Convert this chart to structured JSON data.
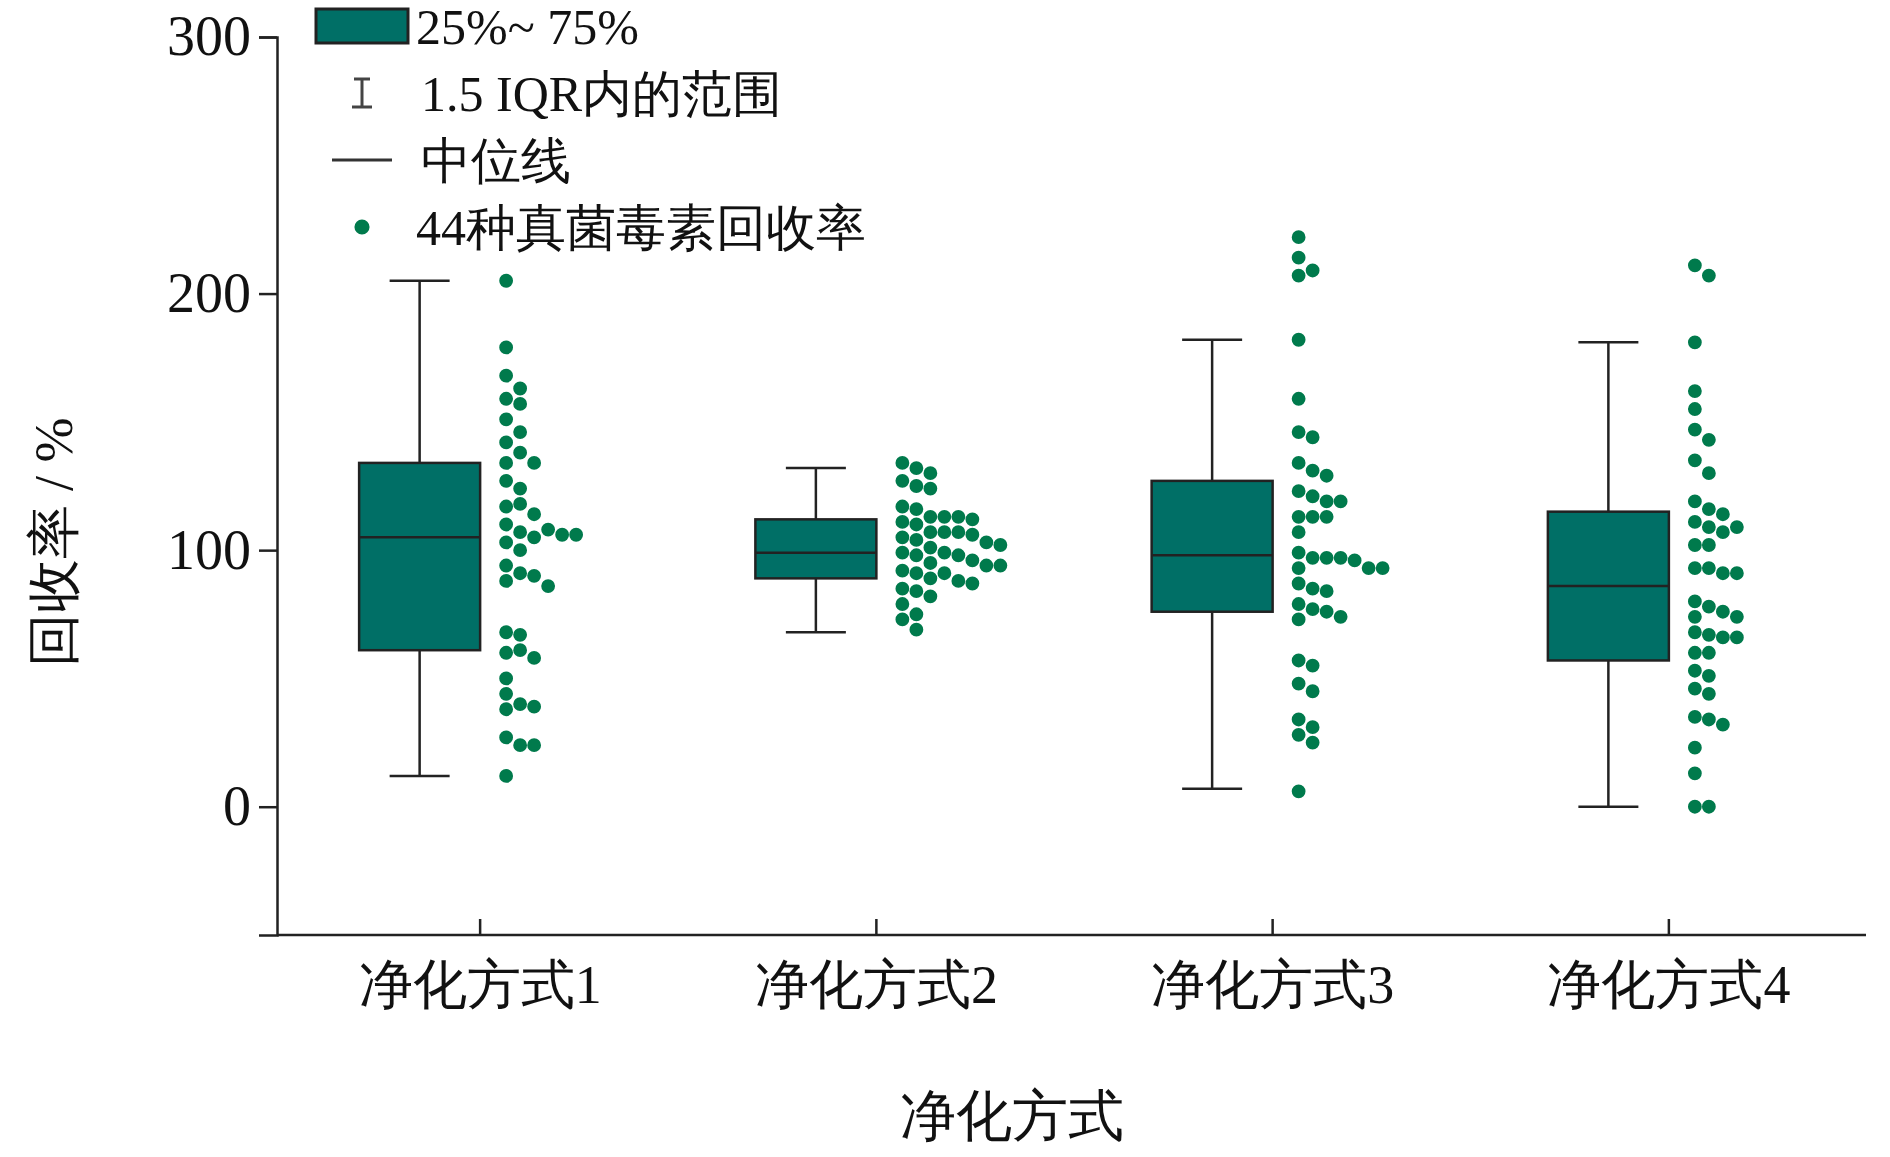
{
  "chart_data": {
    "type": "box",
    "xlabel": "净化方式",
    "ylabel": "回收率 / %",
    "categories": [
      "净化方式1",
      "净化方式2",
      "净化方式3",
      "净化方式4"
    ],
    "ylim": [
      -50,
      300
    ],
    "yticks": [
      0,
      100,
      200,
      300
    ],
    "grid": false,
    "legend": "top left",
    "marker": "circle",
    "annotations": [
      "1.5 IQR内的范围",
      "中位线"
    ],
    "series": [
      {
        "type": "box",
        "name": "25%~ 75%",
        "color": "#006f66",
        "boxes": [
          {
            "low": 12,
            "q1": 61,
            "median": 105,
            "q3": 134,
            "high": 205
          },
          {
            "low": 68,
            "q1": 89,
            "median": 99,
            "q3": 112,
            "high": 132
          },
          {
            "low": 7,
            "q1": 76,
            "median": 98,
            "q3": 127,
            "high": 182
          },
          {
            "low": 0,
            "q1": 57,
            "median": 86,
            "q3": 115,
            "high": 181
          }
        ]
      },
      {
        "type": "scatter",
        "name": "44种真菌毒素回收率",
        "color": "#007a4c",
        "x": [
          "净化方式1",
          "净化方式1",
          "净化方式1",
          "净化方式1",
          "净化方式1",
          "净化方式1",
          "净化方式1",
          "净化方式1",
          "净化方式1",
          "净化方式1",
          "净化方式1",
          "净化方式1",
          "净化方式1",
          "净化方式1",
          "净化方式1",
          "净化方式1",
          "净化方式1",
          "净化方式1",
          "净化方式1",
          "净化方式1",
          "净化方式1",
          "净化方式1",
          "净化方式1",
          "净化方式1",
          "净化方式1",
          "净化方式1",
          "净化方式1",
          "净化方式1",
          "净化方式1",
          "净化方式1",
          "净化方式1",
          "净化方式1",
          "净化方式1",
          "净化方式1",
          "净化方式1",
          "净化方式1",
          "净化方式1",
          "净化方式1",
          "净化方式1",
          "净化方式1",
          "净化方式1",
          "净化方式1",
          "净化方式1",
          "净化方式1",
          "净化方式2",
          "净化方式2",
          "净化方式2",
          "净化方式2",
          "净化方式2",
          "净化方式2",
          "净化方式2",
          "净化方式2",
          "净化方式2",
          "净化方式2",
          "净化方式2",
          "净化方式2",
          "净化方式2",
          "净化方式2",
          "净化方式2",
          "净化方式2",
          "净化方式2",
          "净化方式2",
          "净化方式2",
          "净化方式2",
          "净化方式2",
          "净化方式2",
          "净化方式2",
          "净化方式2",
          "净化方式2",
          "净化方式2",
          "净化方式2",
          "净化方式2",
          "净化方式2",
          "净化方式2",
          "净化方式2",
          "净化方式2",
          "净化方式2",
          "净化方式2",
          "净化方式2",
          "净化方式2",
          "净化方式2",
          "净化方式2",
          "净化方式2",
          "净化方式2",
          "净化方式2",
          "净化方式2",
          "净化方式2",
          "净化方式2",
          "净化方式3",
          "净化方式3",
          "净化方式3",
          "净化方式3",
          "净化方式3",
          "净化方式3",
          "净化方式3",
          "净化方式3",
          "净化方式3",
          "净化方式3",
          "净化方式3",
          "净化方式3",
          "净化方式3",
          "净化方式3",
          "净化方式3",
          "净化方式3",
          "净化方式3",
          "净化方式3",
          "净化方式3",
          "净化方式3",
          "净化方式3",
          "净化方式3",
          "净化方式3",
          "净化方式3",
          "净化方式3",
          "净化方式3",
          "净化方式3",
          "净化方式3",
          "净化方式3",
          "净化方式3",
          "净化方式3",
          "净化方式3",
          "净化方式3",
          "净化方式3",
          "净化方式3",
          "净化方式3",
          "净化方式3",
          "净化方式3",
          "净化方式3",
          "净化方式3",
          "净化方式3",
          "净化方式3",
          "净化方式3",
          "净化方式3",
          "净化方式4",
          "净化方式4",
          "净化方式4",
          "净化方式4",
          "净化方式4",
          "净化方式4",
          "净化方式4",
          "净化方式4",
          "净化方式4",
          "净化方式4",
          "净化方式4",
          "净化方式4",
          "净化方式4",
          "净化方式4",
          "净化方式4",
          "净化方式4",
          "净化方式4",
          "净化方式4",
          "净化方式4",
          "净化方式4",
          "净化方式4",
          "净化方式4",
          "净化方式4",
          "净化方式4",
          "净化方式4",
          "净化方式4",
          "净化方式4",
          "净化方式4",
          "净化方式4",
          "净化方式4",
          "净化方式4",
          "净化方式4",
          "净化方式4",
          "净化方式4",
          "净化方式4",
          "净化方式4",
          "净化方式4",
          "净化方式4",
          "净化方式4",
          "净化方式4",
          "净化方式4",
          "净化方式4",
          "净化方式4",
          "净化方式4"
        ],
        "values": [
          205,
          179,
          168,
          163,
          159,
          157,
          151,
          146,
          142,
          138,
          134,
          134,
          127,
          124,
          117,
          118,
          114,
          110,
          107,
          105,
          108,
          106,
          103,
          106,
          100,
          94,
          91,
          90,
          88,
          86,
          68,
          67,
          60,
          61,
          58,
          50,
          44,
          40,
          39,
          38,
          27,
          24,
          24,
          12,
          134,
          132,
          130,
          127,
          125,
          124,
          117,
          116,
          113,
          113,
          113,
          112,
          111,
          110,
          107,
          107,
          107,
          106,
          105,
          104,
          103,
          102,
          101,
          99,
          99,
          98,
          98,
          96,
          95,
          94,
          94,
          92,
          91,
          91,
          89,
          88,
          87,
          85,
          84,
          82,
          79,
          75,
          73,
          69,
          222,
          214,
          209,
          207,
          182,
          159,
          146,
          144,
          134,
          131,
          129,
          123,
          121,
          119,
          119,
          113,
          113,
          113,
          107,
          99,
          97,
          97,
          97,
          96,
          93,
          93,
          93,
          87,
          85,
          84,
          79,
          77,
          76,
          74,
          73,
          57,
          55,
          48,
          45,
          34,
          31,
          28,
          25,
          6,
          211,
          207,
          181,
          162,
          155,
          147,
          143,
          135,
          130,
          119,
          116,
          114,
          111,
          109,
          109,
          107,
          102,
          102,
          93,
          93,
          91,
          91,
          80,
          78,
          76,
          74,
          74,
          68,
          67,
          66,
          66,
          60,
          60,
          53,
          51,
          46,
          44,
          35,
          34,
          32,
          23,
          13,
          0,
          0
        ]
      }
    ]
  }
}
